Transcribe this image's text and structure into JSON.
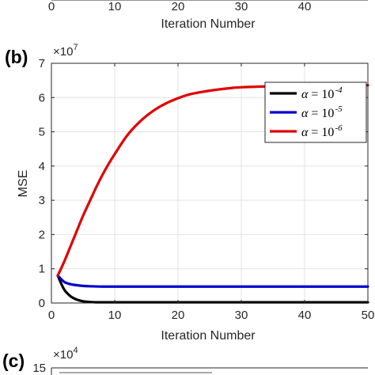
{
  "top_panel": {
    "x_ticks": [
      "0",
      "10",
      "20",
      "30",
      "40"
    ],
    "xlabel": "Iteration Number"
  },
  "panel_b": {
    "label": "(b)",
    "exponent": "×10",
    "exponent_power": "7",
    "ylabel": "MSE",
    "xlabel": "Iteration Number",
    "x_ticks": [
      "0",
      "10",
      "20",
      "30",
      "40",
      "50"
    ],
    "y_ticks": [
      "0",
      "1",
      "2",
      "3",
      "4",
      "5",
      "6",
      "7"
    ]
  },
  "panel_c": {
    "label": "(c)",
    "exponent": "×10",
    "exponent_power": "4",
    "y_ticks": [
      "15"
    ]
  },
  "chart_data": {
    "type": "line",
    "xlabel": "Iteration Number",
    "ylabel": "MSE",
    "xlim": [
      0,
      50
    ],
    "ylim": [
      0,
      7
    ],
    "y_scale_multiplier": "×10^7",
    "grid": true,
    "legend_position": "top-right",
    "series": [
      {
        "name": "α = 10^-4",
        "legend_symbol": "α",
        "legend_base": "= 10",
        "legend_exp": "-4",
        "color": "#000000",
        "x": [
          1,
          2,
          3,
          4,
          5,
          6,
          7,
          8,
          10,
          15,
          20,
          30,
          40,
          50
        ],
        "y": [
          0.8,
          0.4,
          0.2,
          0.1,
          0.05,
          0.03,
          0.02,
          0.02,
          0.02,
          0.02,
          0.02,
          0.02,
          0.02,
          0.02
        ]
      },
      {
        "name": "α = 10^-5",
        "legend_symbol": "α",
        "legend_base": "= 10",
        "legend_exp": "-5",
        "color": "#0000cc",
        "x": [
          1,
          2,
          3,
          4,
          5,
          6,
          8,
          10,
          15,
          20,
          30,
          40,
          50
        ],
        "y": [
          0.8,
          0.62,
          0.55,
          0.52,
          0.5,
          0.49,
          0.48,
          0.48,
          0.48,
          0.48,
          0.48,
          0.48,
          0.48
        ]
      },
      {
        "name": "α = 10^-6",
        "legend_symbol": "α",
        "legend_base": "= 10",
        "legend_exp": "-6",
        "color": "#e00000",
        "x": [
          1,
          2,
          3,
          4,
          5,
          6,
          7,
          8,
          9,
          10,
          12,
          14,
          16,
          18,
          20,
          22,
          25,
          28,
          30,
          35,
          40,
          45,
          50
        ],
        "y": [
          0.8,
          1.2,
          1.65,
          2.1,
          2.55,
          2.95,
          3.35,
          3.72,
          4.05,
          4.35,
          4.9,
          5.3,
          5.6,
          5.82,
          5.98,
          6.1,
          6.2,
          6.27,
          6.3,
          6.33,
          6.35,
          6.36,
          6.36
        ]
      }
    ]
  }
}
